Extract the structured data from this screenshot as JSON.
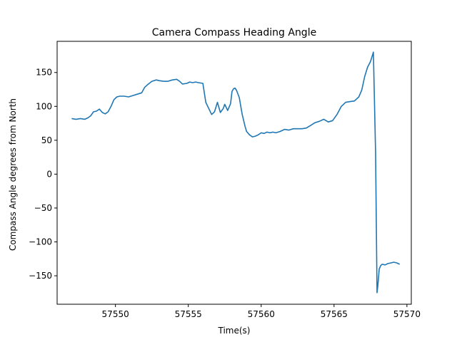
{
  "chart_data": {
    "type": "line",
    "title": "Camera Compass Heading Angle",
    "xlabel": "Time(s)",
    "ylabel": "Compass Angle degrees from North",
    "xlim": [
      57546.0,
      57570.3
    ],
    "ylim": [
      -192,
      196
    ],
    "xticks": [
      57550,
      57555,
      57560,
      57565,
      57570
    ],
    "yticks": [
      -150,
      -100,
      -50,
      0,
      50,
      100,
      150
    ],
    "xtick_labels": [
      "57550",
      "57555",
      "57560",
      "57565",
      "57570"
    ],
    "ytick_labels": [
      "−150",
      "−100",
      "−50",
      "0",
      "50",
      "100",
      "150"
    ],
    "grid": false,
    "series": [
      {
        "color": "#1f77b4",
        "x": [
          57547.0,
          57547.3,
          57547.6,
          57547.9,
          57548.1,
          57548.3,
          57548.5,
          57548.7,
          57548.9,
          57549.1,
          57549.3,
          57549.5,
          57549.7,
          57549.9,
          57550.1,
          57550.3,
          57550.6,
          57550.9,
          57551.2,
          57551.5,
          57551.8,
          57552.0,
          57552.2,
          57552.5,
          57552.8,
          57553.0,
          57553.3,
          57553.6,
          57553.9,
          57554.2,
          57554.4,
          57554.6,
          57554.9,
          57555.1,
          57555.3,
          57555.5,
          57555.7,
          57556.0,
          57556.2,
          57556.4,
          57556.6,
          57556.8,
          57557.0,
          57557.2,
          57557.4,
          57557.5,
          57557.7,
          57557.9,
          57558.0,
          57558.1,
          57558.2,
          57558.3,
          57558.5,
          57558.6,
          57558.7,
          57558.9,
          57559.0,
          57559.2,
          57559.4,
          57559.6,
          57559.8,
          57560.0,
          57560.2,
          57560.4,
          57560.6,
          57560.8,
          57561.0,
          57561.3,
          57561.6,
          57561.9,
          57562.2,
          57562.5,
          57562.8,
          57563.1,
          57563.4,
          57563.7,
          57564.0,
          57564.3,
          57564.6,
          57564.9,
          57565.2,
          57565.5,
          57565.8,
          57566.1,
          57566.4,
          57566.7,
          57566.9,
          57567.1,
          57567.3,
          57567.5,
          57567.7,
          57567.85,
          57567.95,
          57568.0,
          57568.1,
          57568.2,
          57568.3,
          57568.5,
          57568.7,
          57568.9,
          57569.1,
          57569.3,
          57569.5
        ],
        "y": [
          82,
          81,
          82,
          81,
          83,
          86,
          92,
          93,
          96,
          91,
          89,
          92,
          100,
          110,
          114,
          115,
          115,
          114,
          116,
          118,
          120,
          128,
          132,
          137,
          139,
          138,
          137,
          137,
          139,
          140,
          137,
          133,
          134,
          136,
          135,
          136,
          135,
          134,
          106,
          97,
          88,
          92,
          106,
          91,
          97,
          103,
          94,
          104,
          122,
          126,
          127,
          124,
          113,
          100,
          88,
          70,
          63,
          58,
          55,
          56,
          58,
          61,
          60,
          62,
          61,
          62,
          61,
          63,
          66,
          65,
          67,
          67,
          67,
          68,
          72,
          76,
          78,
          81,
          77,
          79,
          88,
          100,
          106,
          107,
          108,
          114,
          124,
          144,
          158,
          166,
          180,
          30,
          -175,
          -165,
          -140,
          -135,
          -133,
          -134,
          -132,
          -131,
          -130,
          -131,
          -133
        ]
      }
    ]
  }
}
